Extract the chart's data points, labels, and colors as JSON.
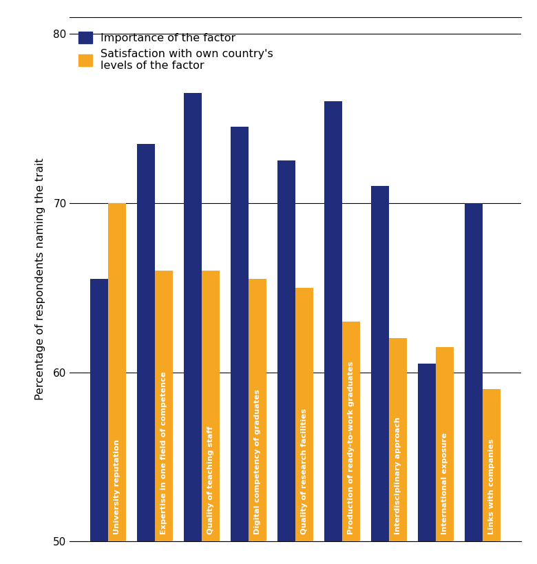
{
  "categories": [
    "University reputation",
    "Expertise in one field of competence",
    "Quality of teaching staff",
    "Digital competency of graduates",
    "Quality of research facilities",
    "Production of ready-to-work graduates",
    "Interdisciplinary approach",
    "International exposure",
    "Links with companies"
  ],
  "importance": [
    65.5,
    73.5,
    76.5,
    74.5,
    72.5,
    76.0,
    71.0,
    60.5,
    70.0
  ],
  "satisfaction": [
    70.0,
    66.0,
    66.0,
    65.5,
    65.0,
    63.0,
    62.0,
    61.5,
    59.0
  ],
  "importance_color": "#1F2D7B",
  "satisfaction_color": "#F5A623",
  "ylabel": "Percentage of respondents naming the trait",
  "ylim": [
    50,
    81
  ],
  "yticks": [
    50,
    60,
    70,
    80
  ],
  "legend_importance": "Importance of the factor",
  "legend_satisfaction": "Satisfaction with own country's\nlevels of the factor",
  "bar_width": 0.38,
  "legend_fontsize": 11.5,
  "ylabel_fontsize": 11.5,
  "label_fontsize": 8.2,
  "tick_fontsize": 11
}
